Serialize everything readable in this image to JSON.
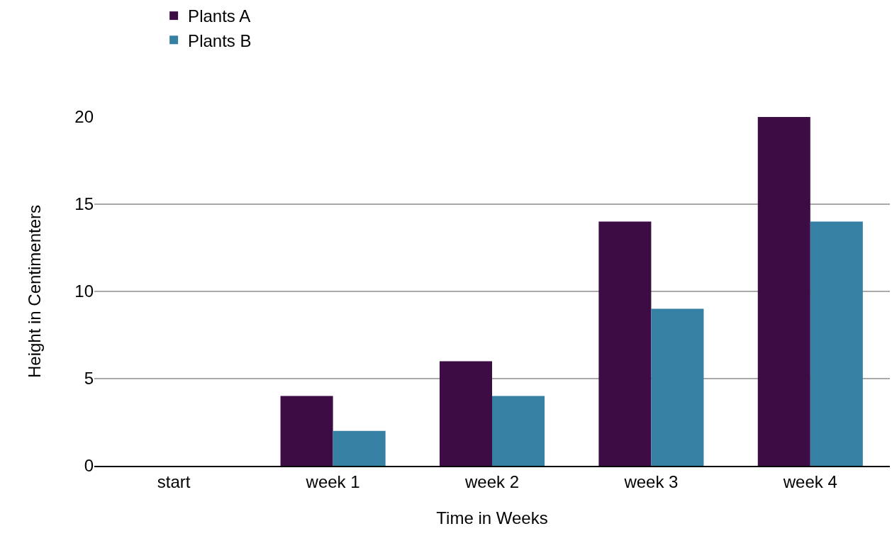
{
  "chart_data": {
    "type": "bar",
    "xlabel": "Time in Weeks",
    "ylabel": "Height in Centimenters",
    "categories": [
      "start",
      "week 1",
      "week 2",
      "week 3",
      "week 4"
    ],
    "series": [
      {
        "name": "Plants A",
        "color": "#3d0c45",
        "values": [
          0,
          4,
          6,
          14,
          20
        ]
      },
      {
        "name": "Plants B",
        "color": "#3680a3",
        "values": [
          0,
          2,
          4,
          9,
          14
        ]
      }
    ],
    "ylim": [
      0,
      20
    ],
    "yticks": [
      0,
      5,
      10,
      15,
      20
    ],
    "grid": "y",
    "legend": "top"
  }
}
